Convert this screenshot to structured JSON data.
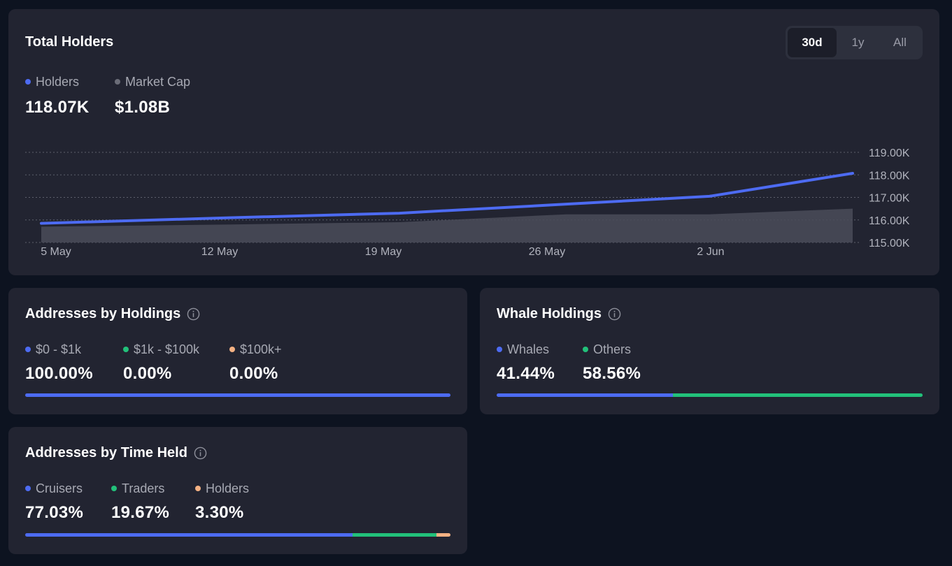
{
  "holders_card": {
    "title": "Total Holders",
    "ranges": [
      "30d",
      "1y",
      "All"
    ],
    "active_range": "30d",
    "legend": [
      {
        "label": "Holders",
        "value": "118.07K",
        "color": "#4d6bf2"
      },
      {
        "label": "Market Cap",
        "value": "$1.08B",
        "color": "#6b6d78"
      }
    ]
  },
  "chart_data": {
    "type": "line",
    "x": [
      "2024-05-04",
      "2024-05-12",
      "2024-05-19",
      "2024-05-26",
      "2024-06-01",
      "2024-06-07"
    ],
    "x_tick_labels": [
      "5 May",
      "12 May",
      "19 May",
      "26 May",
      "2 Jun"
    ],
    "y_tick_labels": [
      "119.00K",
      "118.00K",
      "117.00K",
      "116.00K",
      "115.00K"
    ],
    "ylim": [
      115000,
      119000
    ],
    "series": [
      {
        "name": "Holders",
        "type": "line",
        "color": "#4d6bf2",
        "values": [
          115850,
          116100,
          116300,
          116700,
          117050,
          118070
        ]
      },
      {
        "name": "Market Cap",
        "type": "area",
        "color": "#4a4c59",
        "values": [
          115700,
          115800,
          115900,
          116250,
          116250,
          116500
        ]
      }
    ],
    "grid": true,
    "legend": "top-left"
  },
  "holdings_card": {
    "title": "Addresses by Holdings",
    "info_icon": "info-icon",
    "legend": [
      {
        "label": "$0 - $1k",
        "value": "100.00%",
        "color": "#4d6bf2",
        "fraction": 1.0
      },
      {
        "label": "$1k - $100k",
        "value": "0.00%",
        "color": "#22c17a",
        "fraction": 0.0
      },
      {
        "label": "$100k+",
        "value": "0.00%",
        "color": "#f4b183",
        "fraction": 0.0
      }
    ]
  },
  "whale_card": {
    "title": "Whale Holdings",
    "info_icon": "info-icon",
    "legend": [
      {
        "label": "Whales",
        "value": "41.44%",
        "color": "#4d6bf2",
        "fraction": 0.4144
      },
      {
        "label": "Others",
        "value": "58.56%",
        "color": "#22c17a",
        "fraction": 0.5856
      }
    ]
  },
  "time_card": {
    "title": "Addresses by Time Held",
    "info_icon": "info-icon",
    "legend": [
      {
        "label": "Cruisers",
        "value": "77.03%",
        "color": "#4d6bf2",
        "fraction": 0.7703
      },
      {
        "label": "Traders",
        "value": "19.67%",
        "color": "#22c17a",
        "fraction": 0.1967
      },
      {
        "label": "Holders",
        "value": "3.30%",
        "color": "#f4b183",
        "fraction": 0.033
      }
    ]
  }
}
